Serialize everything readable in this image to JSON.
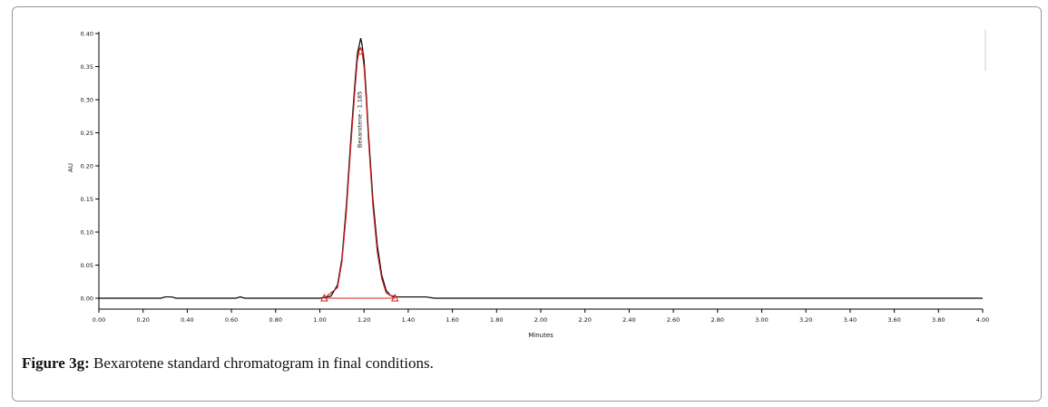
{
  "figure": {
    "label": "Figure 3g:",
    "caption": "Bexarotene standard chromatogram in final conditions."
  },
  "chart_data": {
    "type": "line",
    "xlabel": "Minutes",
    "ylabel": "AU",
    "xlim": [
      0.0,
      4.0
    ],
    "ylim": [
      -0.015,
      0.4
    ],
    "x_ticks": [
      "0.00",
      "0.20",
      "0.40",
      "0.60",
      "0.80",
      "1.00",
      "1.20",
      "1.40",
      "1.60",
      "1.80",
      "2.00",
      "2.20",
      "2.40",
      "2.60",
      "2.80",
      "3.00",
      "3.20",
      "3.40",
      "3.60",
      "3.80",
      "4.00"
    ],
    "y_ticks": [
      "0.00",
      "0.05",
      "0.10",
      "0.15",
      "0.20",
      "0.25",
      "0.30",
      "0.35",
      "0.40"
    ],
    "grid": false,
    "colors": {
      "trace": "#000000",
      "peak": "#cc2020"
    },
    "peak_label": "Bexarotene - 1.185",
    "series": [
      {
        "x": [
          0.0,
          0.28,
          0.3,
          0.33,
          0.35,
          0.62,
          0.64,
          0.66,
          1.0,
          1.05,
          1.08,
          1.1,
          1.12,
          1.14,
          1.16,
          1.17,
          1.18,
          1.185,
          1.19,
          1.2,
          1.21,
          1.22,
          1.24,
          1.26,
          1.28,
          1.3,
          1.32,
          1.35,
          1.4,
          1.48,
          1.52,
          4.0
        ],
        "y": [
          0.0,
          0.0,
          0.002,
          0.002,
          0.0,
          0.0,
          0.002,
          0.0,
          0.0,
          0.003,
          0.02,
          0.06,
          0.14,
          0.24,
          0.33,
          0.37,
          0.385,
          0.393,
          0.385,
          0.36,
          0.31,
          0.25,
          0.15,
          0.08,
          0.035,
          0.012,
          0.004,
          0.002,
          0.002,
          0.002,
          0.0,
          0.0
        ]
      }
    ],
    "peak_integration": {
      "x": [
        1.02,
        1.08,
        1.1,
        1.12,
        1.14,
        1.16,
        1.17,
        1.18,
        1.19,
        1.2,
        1.21,
        1.22,
        1.24,
        1.26,
        1.28,
        1.3,
        1.34
      ],
      "y": [
        0.0,
        0.016,
        0.055,
        0.13,
        0.23,
        0.32,
        0.36,
        0.378,
        0.375,
        0.35,
        0.3,
        0.24,
        0.14,
        0.07,
        0.03,
        0.008,
        0.0
      ],
      "baseline": [
        [
          1.02,
          0.0
        ],
        [
          1.34,
          0.0
        ]
      ],
      "apex": [
        1.185,
        0.373
      ]
    }
  }
}
